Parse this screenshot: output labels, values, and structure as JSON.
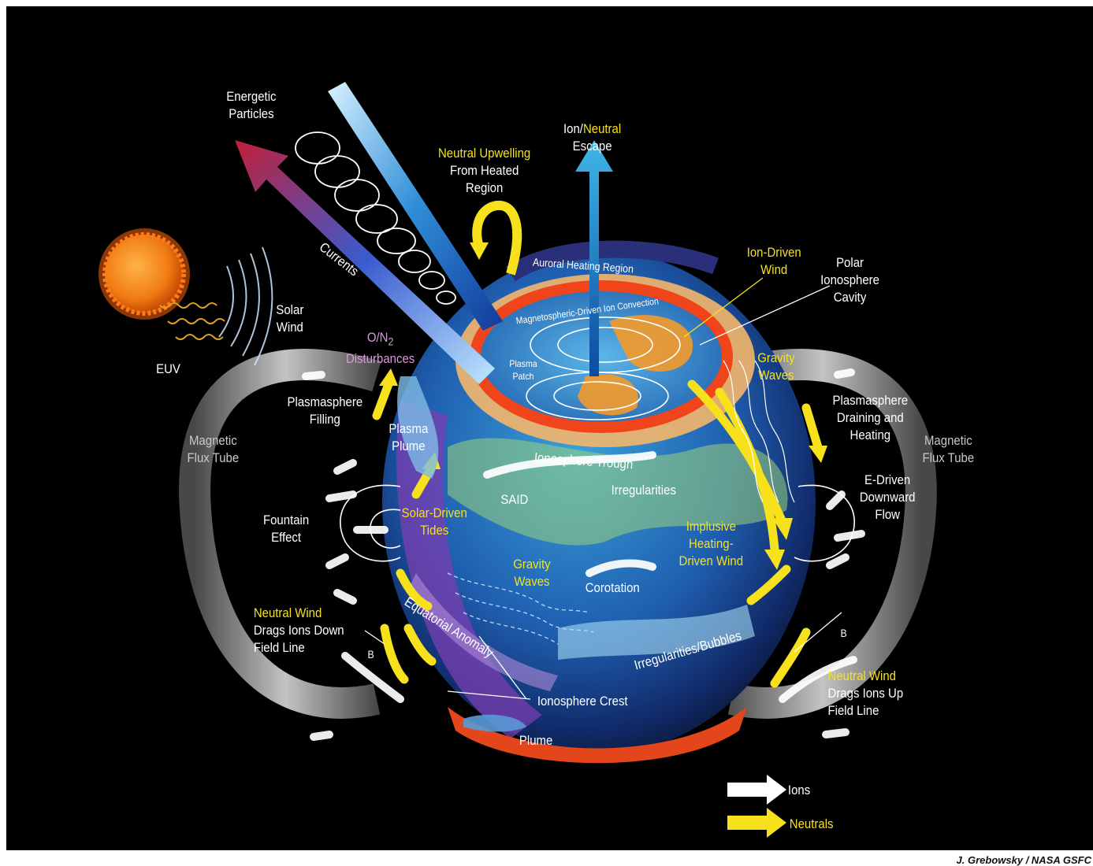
{
  "colors": {
    "background": "#000000",
    "ion_arrow": "#ffffff",
    "neutral_arrow": "#f6e11c",
    "label_white": "#ffffff",
    "label_yellow": "#f6e11c"
  },
  "labels": {
    "energetic_particles": [
      "Energetic",
      "Particles"
    ],
    "currents": "Currents",
    "solar_wind": [
      "Solar",
      "Wind"
    ],
    "euv": "EUV",
    "ion_neutral_escape": {
      "ion": "Ion/",
      "neutral": "Neutral",
      "escape": "Escape"
    },
    "neutral_upwelling": {
      "line1": "Neutral Upwelling",
      "line2": "From Heated",
      "line3": "Region"
    },
    "ion_driven_wind": [
      "Ion-Driven",
      "Wind"
    ],
    "polar_ionosphere_cavity": [
      "Polar",
      "Ionosphere",
      "Cavity"
    ],
    "auroral_heating_region": "Auroral Heating Region",
    "magnetospheric_convection": "Magnetospheric-Driven Ion Convection",
    "o_n2": {
      "top": "O/N",
      "sub": "2",
      "bottom": "Disturbances"
    },
    "plasma_patch": [
      "Plasma",
      "Patch"
    ],
    "gravity_waves_right": [
      "Gravity",
      "Waves"
    ],
    "plasmasphere_filling": [
      "Plasmasphere",
      "Filling"
    ],
    "plasmasphere_draining": [
      "Plasmasphere",
      "Draining and",
      "Heating"
    ],
    "magnetic_flux_tube": [
      "Magnetic",
      "Flux Tube"
    ],
    "plasma_plume": [
      "Plasma",
      "Plume"
    ],
    "ionosphere_trough": "Ionosphere Trough",
    "said": "SAID",
    "irregularities": "Irregularities",
    "e_driven": [
      "E-Driven",
      "Downward",
      "Flow"
    ],
    "fountain_effect": [
      "Fountain",
      "Effect"
    ],
    "solar_driven_tides": [
      "Solar-Driven",
      "Tides"
    ],
    "implusive_heating": [
      "Implusive",
      "Heating-",
      "Driven Wind"
    ],
    "gravity_waves_center": [
      "Gravity",
      "Waves"
    ],
    "corotation": "Corotation",
    "neutral_wind_down": {
      "line1": "Neutral Wind",
      "line2": "Drags Ions Down",
      "line3": "Field Line"
    },
    "neutral_wind_up": {
      "line1": "Neutral Wind",
      "line2": "Drags Ions Up",
      "line3": "Field Line"
    },
    "equatorial_anomaly": "Equatorial Anomaly",
    "irregularities_bubbles": "Irregularities/Bubbles",
    "ionosphere_crest": "Ionosphere Crest",
    "plume": "Plume",
    "b_vector": "B"
  },
  "legend": {
    "ions": "Ions",
    "neutrals": "Neutrals"
  },
  "credit": "J. Grebowsky / NASA GSFC"
}
